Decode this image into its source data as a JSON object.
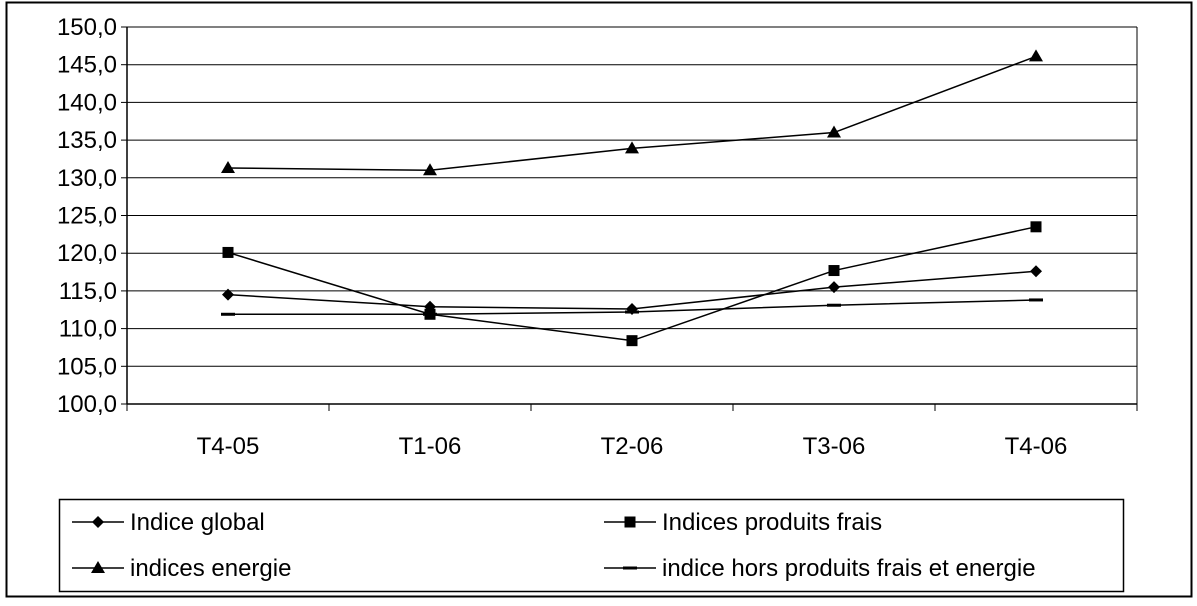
{
  "chart_data": {
    "type": "line",
    "title": "",
    "xlabel": "",
    "ylabel": "",
    "categories": [
      "T4-05",
      "T1-06",
      "T2-06",
      "T3-06",
      "T4-06"
    ],
    "ylim": [
      100,
      150
    ],
    "yticks": [
      "100,0",
      "105,0",
      "110,0",
      "115,0",
      "120,0",
      "125,0",
      "130,0",
      "135,0",
      "140,0",
      "145,0",
      "150,0"
    ],
    "grid": true,
    "legend_position": "bottom",
    "series": [
      {
        "name": "Indice global",
        "marker": "diamond",
        "values": [
          114.5,
          112.9,
          112.6,
          115.5,
          117.6
        ]
      },
      {
        "name": "Indices produits frais",
        "marker": "square",
        "values": [
          120.1,
          111.9,
          108.4,
          117.7,
          123.5
        ]
      },
      {
        "name": "indices energie",
        "marker": "triangle",
        "values": [
          131.3,
          131.0,
          133.9,
          136.0,
          146.1
        ]
      },
      {
        "name": "indice hors produits frais et energie",
        "marker": "dash",
        "values": [
          111.9,
          111.9,
          112.2,
          113.1,
          113.8
        ]
      }
    ],
    "colors": {
      "line": "#000000",
      "grid": "#000000",
      "background": "#ffffff"
    }
  }
}
